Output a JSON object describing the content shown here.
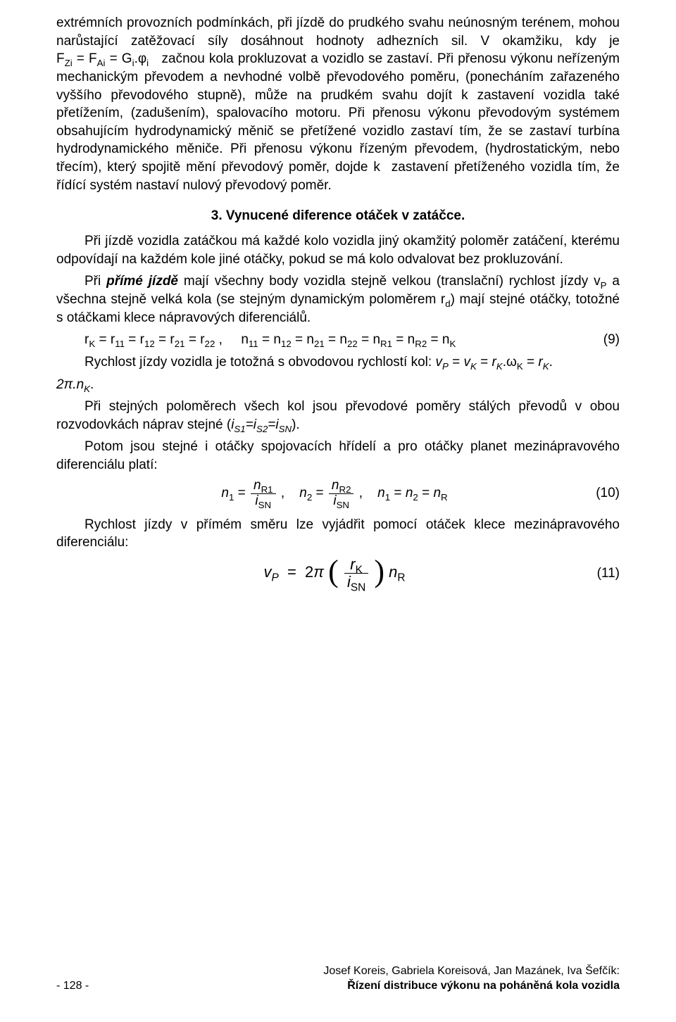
{
  "para1": "extrémních provozních podmínkách, při jízdě do prudkého svahu neúnosným terénem, mohou narůstající zatěžovací síly dosáhnout hodnoty adhezních sil. V okamžiku, kdy je FZi = FAi = Gi.φi  začnou kola prokluzovat a vozidlo se zastaví. Při přenosu výkonu neřízeným mechanickým převodem a nevhodné volbě převodového poměru, (ponecháním zařazeného vyššího převodového stupně), může na prudkém svahu dojít k zastavení vozidla také přetížením, (zadušením), spalovacího motoru. Při přenosu výkonu převodovým systémem obsahujícím hydrodynamický měnič se přetížené vozidlo zastaví tím, že se zastaví turbína hydrodynamického měniče. Při přenosu výkonu řízeným převodem, (hydrostatickým, nebo třecím), který spojitě mění převodový poměr, dojde k  zastavení přetíženého vozidla tím, že řídící systém nastaví nulový převodový poměr.",
  "heading": "3.   Vynucené diference otáček v zatáčce.",
  "para2": "Při jízdě vozidla zatáčkou má každé kolo vozidla jiný okamžitý poloměr zatáčení, kterému odpovídají na každém kole jiné otáčky, pokud se má kolo odvalovat bez prokluzování.",
  "para3_pre": "Při ",
  "para3_strong": "přímé jízdě",
  "para3_post": " mají všechny body vozidla stejně velkou (translační) rychlost jízdy vP a všechna stejně velká kola (se stejným dynamickým poloměrem rd) mají stejné otáčky, totožné s otáčkami klece nápravových diferenciálů.",
  "formula9": "rK = r11 = r12 = r21 = r22 ,     n11 = n12 = n21 = n22 = nR1 = nR2 = nK",
  "formula9_num": "(9)",
  "para4": "Rychlost jízdy vozidla je totožná s obvodovou rychlostí kol: vP = vK = rK.ωK = rK. 2π.nK.",
  "para5": "Při stejných poloměrech všech kol jsou převodové poměry stálých převodů v obou rozvodovkách náprav stejné (iS1=iS2=iSN).",
  "para6": "Potom jsou stejné i otáčky spojovacích hřídelí a pro otáčky planet mezinápravového diferenciálu platí:",
  "formula10_num": "(10)",
  "para7": "Rychlost jízdy v přímém směru lze vyjádřit pomocí otáček klece mezinápravového diferenciálu:",
  "formula11_num": "(11)",
  "footer_page": "- 128 -",
  "footer_authors": "Josef Koreis, Gabriela Koreisová, Jan Mazánek, Iva Šefčík:",
  "footer_title": "Řízení distribuce výkonu na poháněná kola vozidla"
}
